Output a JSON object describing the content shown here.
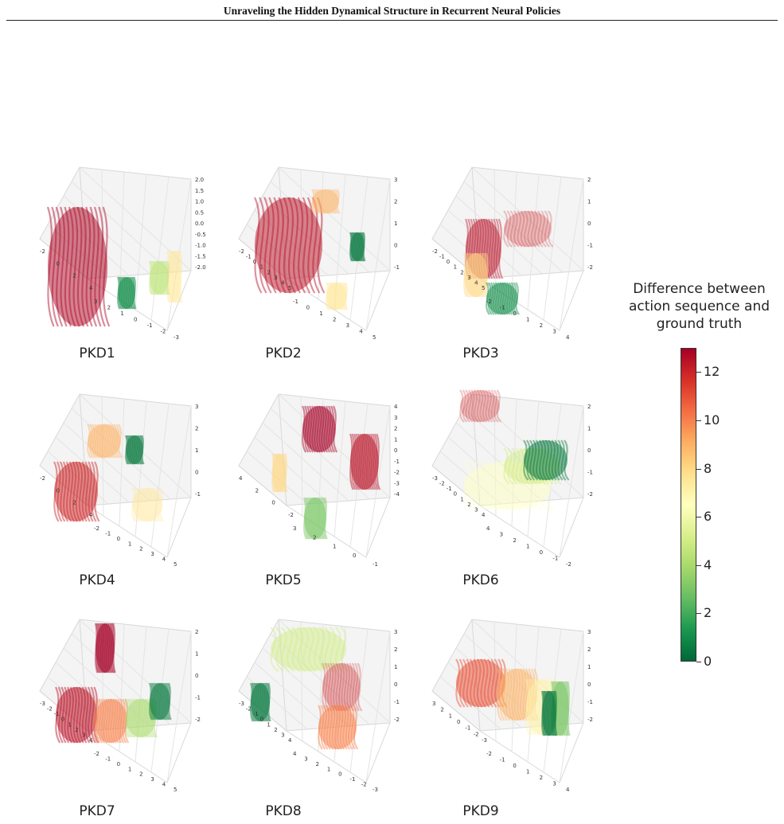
{
  "header": {
    "title": "Unraveling the Hidden Dynamical Structure in Recurrent Neural Policies"
  },
  "colorbar": {
    "title_lines": [
      "Difference between",
      "action sequence and",
      "ground truth"
    ],
    "ticks": [
      "0",
      "2",
      "4",
      "6",
      "8",
      "10",
      "12"
    ],
    "range": [
      0,
      13
    ],
    "colormap": "RdYlGn_r",
    "colors": [
      "#006837",
      "#1a9850",
      "#66bd63",
      "#a6d96a",
      "#d9ef8b",
      "#ffffbf",
      "#fee08b",
      "#fdae61",
      "#f46d43",
      "#d73027",
      "#a50026"
    ]
  },
  "figure": {
    "type": "3d-trajectory-grid",
    "panels": [
      {
        "label": "PKD1",
        "tick_sets": [
          [
            "-2",
            "0",
            "2",
            "4"
          ],
          [
            "3",
            "2",
            "1",
            "0",
            "-1",
            "-2",
            "-3"
          ],
          [
            "2.0",
            "1.5",
            "1.0",
            "0.5",
            "0.0",
            "-0.5",
            "-1.0",
            "-1.5",
            "-2.0"
          ]
        ],
        "clusters": [
          {
            "value": 12.8
          },
          {
            "value": 7.5
          },
          {
            "value": 4.5
          },
          {
            "value": 1
          }
        ]
      },
      {
        "label": "PKD2",
        "tick_sets": [
          [
            "-2",
            "-1",
            "0",
            "1",
            "2",
            "3",
            "4",
            "5"
          ],
          [
            "-1",
            "0",
            "1",
            "2",
            "3",
            "4",
            "5"
          ],
          [
            "3",
            "2",
            "1",
            "0",
            "-1"
          ]
        ],
        "clusters": [
          {
            "value": 12.5
          },
          {
            "value": 9
          },
          {
            "value": 7.5
          },
          {
            "value": 0.5
          }
        ]
      },
      {
        "label": "PKD3",
        "tick_sets": [
          [
            "-2",
            "-1",
            "0",
            "1",
            "2",
            "3",
            "4",
            "5"
          ],
          [
            "-2",
            "-1",
            "0",
            "1",
            "2",
            "3",
            "4"
          ],
          [
            "2",
            "1",
            "0",
            "-1",
            "-2"
          ]
        ],
        "clusters": [
          {
            "value": 12.5
          },
          {
            "value": 8
          },
          {
            "value": 12
          },
          {
            "value": 1
          }
        ]
      },
      {
        "label": "PKD4",
        "tick_sets": [
          [
            "-2",
            "0",
            "2",
            "4"
          ],
          [
            "-2",
            "-1",
            "0",
            "1",
            "2",
            "3",
            "4",
            "5"
          ],
          [
            "3",
            "2",
            "1",
            "0",
            "-1"
          ]
        ],
        "clusters": [
          {
            "value": 12
          },
          {
            "value": 9
          },
          {
            "value": 7.5
          },
          {
            "value": 0.5
          }
        ]
      },
      {
        "label": "PKD5",
        "tick_sets": [
          [
            "4",
            "2",
            "0",
            "-2"
          ],
          [
            "3",
            "2",
            "1",
            "0",
            "-1"
          ],
          [
            "4",
            "3",
            "2",
            "1",
            "0",
            "-1",
            "-2",
            "-3",
            "-4"
          ]
        ],
        "clusters": [
          {
            "value": 13
          },
          {
            "value": 12.5
          },
          {
            "value": 8
          },
          {
            "value": 3
          }
        ]
      },
      {
        "label": "PKD6",
        "tick_sets": [
          [
            "-3",
            "-2",
            "-1",
            "0",
            "1",
            "2",
            "3",
            "4"
          ],
          [
            "4",
            "3",
            "2",
            "1",
            "0",
            "-1",
            "-2"
          ],
          [
            "2",
            "1",
            "0",
            "-1",
            "-2"
          ]
        ],
        "clusters": [
          {
            "value": 12
          },
          {
            "value": 6.5
          },
          {
            "value": 5
          },
          {
            "value": 0.5
          }
        ]
      },
      {
        "label": "PKD7",
        "tick_sets": [
          [
            "-3",
            "-2",
            "-1",
            "0",
            "1",
            "2",
            "3",
            "4"
          ],
          [
            "-2",
            "-1",
            "0",
            "1",
            "2",
            "3",
            "4",
            "5"
          ],
          [
            "2",
            "1",
            "0",
            "-1",
            "-2"
          ]
        ],
        "clusters": [
          {
            "value": 13
          },
          {
            "value": 12.5
          },
          {
            "value": 10
          },
          {
            "value": 4
          },
          {
            "value": 0.5
          }
        ]
      },
      {
        "label": "PKD8",
        "tick_sets": [
          [
            "-3",
            "-2",
            "-1",
            "0",
            "1",
            "2",
            "3",
            "4"
          ],
          [
            "4",
            "3",
            "2",
            "1",
            "0",
            "-1",
            "-2",
            "-3"
          ],
          [
            "3",
            "2",
            "1",
            "0",
            "-1",
            "-2"
          ]
        ],
        "clusters": [
          {
            "value": 5
          },
          {
            "value": 0.5
          },
          {
            "value": 12
          },
          {
            "value": 10
          }
        ]
      },
      {
        "label": "PKD9",
        "tick_sets": [
          [
            "3",
            "2",
            "1",
            "0",
            "-1",
            "-2",
            "-3"
          ],
          [
            "-2",
            "-1",
            "0",
            "1",
            "2",
            "3",
            "4"
          ],
          [
            "3",
            "2",
            "1",
            "0",
            "-1",
            "-2"
          ]
        ],
        "clusters": [
          {
            "value": 11
          },
          {
            "value": 9
          },
          {
            "value": 7
          },
          {
            "value": 3
          },
          {
            "value": 0.5
          }
        ]
      }
    ]
  }
}
